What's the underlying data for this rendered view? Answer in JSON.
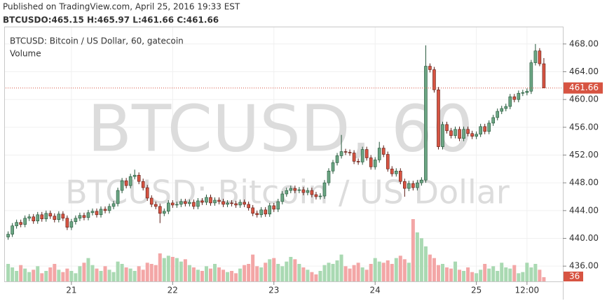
{
  "header": {
    "published": "Published on TradingView.com, April 25, 2016 19:33 EST",
    "ohlc": "BTCUSDO:465.15 H:465.97 L:461.66 C:461.66"
  },
  "chart_data": {
    "type": "candlestick",
    "legend": [
      "BTCUSD: Bitcoin / US Dollar, 60, gatecoin",
      "Volume"
    ],
    "watermark": [
      "BTCUSD, 60",
      "BTCUSD: Bitcoin / US Dollar"
    ],
    "up_color": "#6ba583",
    "down_color": "#d75442",
    "volume_up_color": "#a9d9b2",
    "volume_down_color": "#f3a6a6",
    "open": [
      440.2,
      440.6,
      441.8,
      442.3,
      442.0,
      442.9,
      443.1,
      442.5,
      443.4,
      442.8,
      443.6,
      443.2,
      442.7,
      443.5,
      442.9,
      441.6,
      442.4,
      442.9,
      443.3,
      443.0,
      443.7,
      443.9,
      443.4,
      444.2,
      444.0,
      444.6,
      445.0,
      446.9,
      448.3,
      447.6,
      448.9,
      449.1,
      448.2,
      447.3,
      445.8,
      444.9,
      444.6,
      443.6,
      443.9,
      445.1,
      444.8,
      444.9,
      445.3,
      445.0,
      445.2,
      444.6,
      445.4,
      445.2,
      445.9,
      445.1,
      445.5,
      445.3,
      444.9,
      445.1,
      445.0,
      444.8,
      445.2,
      444.9,
      444.4,
      443.6,
      443.4,
      444.1,
      443.5,
      444.7,
      444.2,
      445.3,
      446.4,
      446.9,
      447.2,
      446.9,
      447.0,
      446.6,
      446.9,
      446.3,
      446.0,
      446.1,
      448.0,
      449.7,
      450.9,
      451.9,
      452.5,
      452.4,
      452.3,
      451.1,
      451.0,
      452.8,
      451.6,
      450.3,
      451.3,
      453.0,
      452.1,
      450.0,
      449.3,
      449.7,
      448.2,
      447.2,
      447.9,
      447.3,
      448.0,
      448.4,
      464.8,
      464.3,
      461.4,
      453.2,
      456.4,
      455.5,
      454.8,
      455.7,
      454.4,
      455.7,
      455.1,
      454.7,
      455.0,
      456.1,
      455.4,
      456.6,
      457.4,
      458.3,
      458.7,
      459.0,
      460.4,
      460.0,
      460.9,
      461.0,
      461.2,
      465.3,
      467.0,
      465.15
    ],
    "high": [
      441.0,
      442.2,
      442.7,
      442.7,
      443.3,
      443.5,
      443.5,
      443.8,
      443.8,
      444.0,
      444.0,
      443.6,
      443.9,
      443.9,
      443.3,
      442.8,
      443.3,
      443.7,
      443.7,
      444.1,
      444.3,
      444.3,
      444.6,
      444.6,
      445.0,
      445.4,
      447.3,
      448.7,
      448.7,
      449.3,
      449.9,
      449.5,
      448.6,
      447.7,
      446.2,
      445.3,
      445.0,
      444.3,
      445.5,
      445.5,
      445.3,
      445.7,
      445.7,
      445.6,
      445.6,
      445.8,
      445.8,
      446.3,
      446.3,
      445.9,
      445.9,
      445.7,
      445.5,
      445.5,
      445.4,
      445.6,
      445.6,
      445.3,
      444.8,
      444.0,
      444.5,
      444.5,
      445.1,
      445.1,
      445.7,
      446.8,
      447.3,
      447.6,
      447.6,
      447.4,
      447.4,
      447.3,
      447.3,
      446.7,
      446.5,
      448.4,
      450.1,
      451.3,
      452.3,
      454.9,
      452.9,
      452.8,
      452.7,
      451.5,
      453.2,
      453.2,
      452.0,
      451.7,
      453.9,
      453.4,
      452.5,
      450.4,
      450.1,
      450.1,
      448.6,
      448.3,
      448.3,
      448.4,
      448.8,
      467.8,
      465.2,
      464.7,
      461.8,
      456.8,
      456.8,
      455.9,
      456.1,
      456.1,
      456.1,
      456.1,
      455.5,
      455.4,
      456.5,
      456.5,
      457.0,
      457.8,
      458.7,
      459.1,
      459.4,
      460.8,
      460.8,
      461.3,
      461.4,
      461.6,
      465.7,
      468.0,
      467.4,
      465.97
    ],
    "low": [
      439.8,
      440.2,
      441.4,
      441.6,
      441.6,
      442.5,
      442.1,
      442.1,
      442.4,
      442.4,
      442.8,
      442.3,
      442.3,
      442.5,
      441.2,
      441.2,
      442.0,
      442.5,
      442.6,
      442.6,
      443.3,
      443.0,
      443.0,
      443.6,
      443.6,
      444.2,
      444.6,
      446.5,
      447.2,
      447.2,
      448.5,
      447.8,
      446.9,
      445.4,
      444.5,
      444.2,
      442.2,
      443.2,
      443.5,
      444.4,
      444.4,
      444.5,
      444.6,
      444.6,
      444.2,
      444.2,
      444.8,
      444.8,
      444.7,
      444.7,
      444.9,
      444.5,
      444.5,
      444.6,
      444.4,
      444.4,
      444.5,
      444.0,
      443.2,
      443.0,
      443.0,
      443.1,
      443.1,
      443.8,
      443.8,
      444.9,
      446.0,
      446.5,
      446.5,
      446.5,
      446.2,
      446.2,
      445.9,
      445.6,
      445.6,
      445.7,
      447.6,
      449.3,
      450.5,
      451.5,
      452.0,
      451.9,
      450.7,
      450.6,
      450.6,
      451.2,
      449.9,
      449.9,
      450.9,
      451.7,
      449.6,
      448.9,
      448.9,
      447.8,
      446.0,
      446.8,
      446.9,
      446.9,
      447.6,
      448.0,
      463.9,
      461.0,
      452.8,
      452.8,
      455.1,
      454.4,
      454.4,
      454.0,
      454.0,
      454.7,
      454.3,
      454.3,
      454.6,
      455.0,
      455.0,
      456.2,
      457.0,
      457.9,
      458.3,
      458.6,
      459.6,
      459.6,
      460.5,
      460.6,
      460.8,
      464.9,
      464.8,
      461.66
    ],
    "close": [
      440.6,
      441.8,
      442.3,
      442.0,
      442.9,
      443.1,
      442.5,
      443.4,
      442.8,
      443.6,
      443.2,
      442.7,
      443.5,
      442.9,
      441.6,
      442.4,
      442.9,
      443.3,
      443.0,
      443.7,
      443.9,
      443.4,
      444.2,
      444.0,
      444.6,
      445.0,
      446.9,
      448.3,
      447.6,
      448.9,
      449.1,
      448.2,
      447.3,
      445.8,
      444.9,
      444.6,
      443.6,
      443.9,
      445.1,
      444.8,
      444.9,
      445.3,
      445.0,
      445.2,
      444.6,
      445.4,
      445.2,
      445.9,
      445.1,
      445.5,
      445.3,
      444.9,
      445.1,
      445.0,
      444.8,
      445.2,
      444.9,
      444.4,
      443.6,
      443.4,
      444.1,
      443.5,
      444.7,
      444.2,
      445.3,
      446.4,
      446.9,
      447.2,
      446.9,
      447.0,
      446.6,
      446.9,
      446.3,
      446.0,
      446.1,
      448.0,
      449.7,
      450.9,
      451.9,
      452.5,
      452.4,
      452.3,
      451.1,
      451.0,
      452.8,
      451.6,
      450.3,
      451.3,
      453.0,
      452.1,
      450.0,
      449.3,
      449.7,
      448.2,
      447.2,
      447.9,
      447.3,
      448.0,
      448.4,
      464.8,
      464.3,
      461.4,
      453.2,
      456.4,
      455.5,
      454.8,
      455.7,
      454.4,
      455.7,
      455.1,
      454.7,
      455.0,
      456.1,
      455.4,
      456.6,
      457.4,
      458.3,
      458.7,
      459.0,
      460.4,
      460.0,
      460.9,
      461.0,
      461.2,
      465.3,
      467.0,
      465.15,
      461.66
    ],
    "volume": [
      150,
      120,
      90,
      140,
      110,
      80,
      100,
      130,
      70,
      90,
      120,
      150,
      100,
      80,
      110,
      90,
      70,
      130,
      160,
      200,
      140,
      110,
      90,
      130,
      100,
      80,
      170,
      150,
      120,
      110,
      90,
      130,
      100,
      160,
      150,
      140,
      240,
      200,
      220,
      210,
      200,
      170,
      190,
      140,
      120,
      100,
      90,
      130,
      110,
      150,
      120,
      100,
      80,
      90,
      70,
      110,
      140,
      150,
      230,
      130,
      120,
      160,
      190,
      200,
      150,
      130,
      170,
      210,
      190,
      150,
      120,
      100,
      80,
      60,
      90,
      140,
      160,
      150,
      180,
      230,
      130,
      110,
      140,
      160,
      120,
      100,
      150,
      200,
      170,
      160,
      180,
      150,
      200,
      220,
      190,
      160,
      534,
      420,
      370,
      300,
      230,
      200,
      140,
      150,
      120,
      110,
      170,
      100,
      90,
      120,
      80,
      70,
      100,
      150,
      110,
      130,
      90,
      160,
      120,
      110,
      140,
      70,
      80,
      160,
      120,
      150,
      100,
      36
    ],
    "volume_ylim": [
      0,
      600
    ],
    "xlim": [
      -0.6,
      131
    ],
    "xticks": [
      {
        "value": 15,
        "label": "21"
      },
      {
        "value": 39,
        "label": "22"
      },
      {
        "value": 63,
        "label": "23"
      },
      {
        "value": 87,
        "label": "24"
      },
      {
        "value": 111,
        "label": "25"
      },
      {
        "value": 123,
        "label": "12:00"
      }
    ],
    "ylim": [
      433.8,
      470.3
    ],
    "yticks": [
      {
        "value": 436,
        "label": "436.00"
      },
      {
        "value": 440,
        "label": "440.00"
      },
      {
        "value": 444,
        "label": "444.00"
      },
      {
        "value": 448,
        "label": "448.00"
      },
      {
        "value": 452,
        "label": "452.00"
      },
      {
        "value": 456,
        "label": "456.00"
      },
      {
        "value": 460,
        "label": "460.00"
      },
      {
        "value": 464,
        "label": "464.00"
      },
      {
        "value": 468,
        "label": "468.00"
      }
    ],
    "grid": true
  }
}
